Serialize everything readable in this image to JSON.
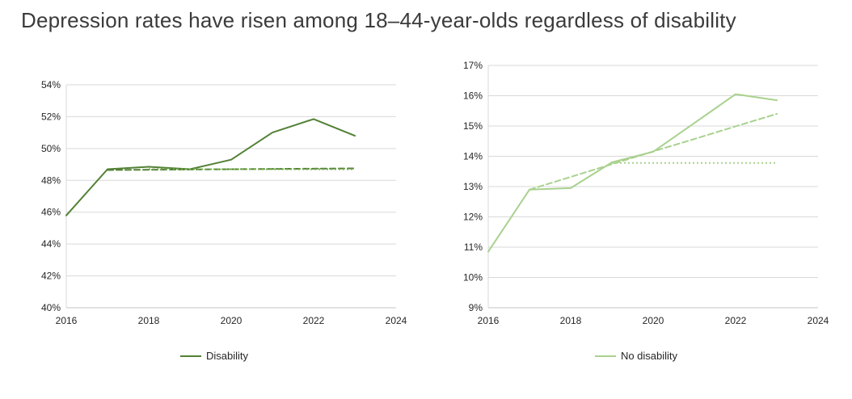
{
  "title": "Depression rates have risen among 18–44-year-olds regardless of disability",
  "colors": {
    "dark_green": "#538135",
    "light_green": "#a9d18e",
    "gridline": "#d9d9d9",
    "axis_line": "#c6c6c6",
    "axis_text": "#262626",
    "title_text": "#3b3b3b"
  },
  "chart_data": [
    {
      "type": "line",
      "title": "",
      "xlabel": "",
      "ylabel": "",
      "xlim": [
        2016,
        2024
      ],
      "ylim": [
        40,
        54
      ],
      "x_ticks": [
        2016,
        2018,
        2020,
        2022,
        2024
      ],
      "y_ticks": [
        40,
        42,
        44,
        46,
        48,
        50,
        52,
        54
      ],
      "tick_suffix": "%",
      "grid": true,
      "legend": {
        "label": "Disability",
        "color": "#538135",
        "position": "bottom-center"
      },
      "series": [
        {
          "name": "Disability actual",
          "style": "solid",
          "color": "#538135",
          "x": [
            2016,
            2017,
            2018,
            2019,
            2020,
            2021,
            2022,
            2023
          ],
          "y": [
            45.8,
            48.7,
            48.85,
            48.7,
            49.3,
            51.0,
            51.85,
            50.8
          ]
        },
        {
          "name": "Disability dashed trend",
          "style": "dashed",
          "color": "#538135",
          "x": [
            2017,
            2023
          ],
          "y": [
            48.65,
            48.75
          ]
        },
        {
          "name": "Disability dotted reference",
          "style": "dotted",
          "color": "#70ad47",
          "x": [
            2018,
            2023
          ],
          "y": [
            48.7,
            48.7
          ]
        }
      ]
    },
    {
      "type": "line",
      "title": "",
      "xlabel": "",
      "ylabel": "",
      "xlim": [
        2016,
        2024
      ],
      "ylim": [
        9,
        17
      ],
      "x_ticks": [
        2016,
        2018,
        2020,
        2022,
        2024
      ],
      "y_ticks": [
        9,
        10,
        11,
        12,
        13,
        14,
        15,
        16,
        17
      ],
      "tick_suffix": "%",
      "grid": true,
      "legend": {
        "label": "No disability",
        "color": "#a9d18e",
        "position": "bottom-center"
      },
      "series": [
        {
          "name": "No disability actual",
          "style": "solid",
          "color": "#a9d18e",
          "x": [
            2016,
            2017,
            2018,
            2019,
            2020,
            2021,
            2022,
            2023
          ],
          "y": [
            10.85,
            12.9,
            12.95,
            13.8,
            14.15,
            15.1,
            16.05,
            15.85
          ]
        },
        {
          "name": "No disability dashed trend",
          "style": "dashed",
          "color": "#a9d18e",
          "x": [
            2017,
            2018,
            2019,
            2020,
            2021,
            2022,
            2023
          ],
          "y": [
            12.9,
            13.32,
            13.74,
            14.16,
            14.57,
            14.99,
            15.4
          ]
        },
        {
          "name": "No disability dotted reference",
          "style": "dotted",
          "color": "#a9d18e",
          "x": [
            2019,
            2023
          ],
          "y": [
            13.78,
            13.78
          ]
        }
      ]
    }
  ]
}
